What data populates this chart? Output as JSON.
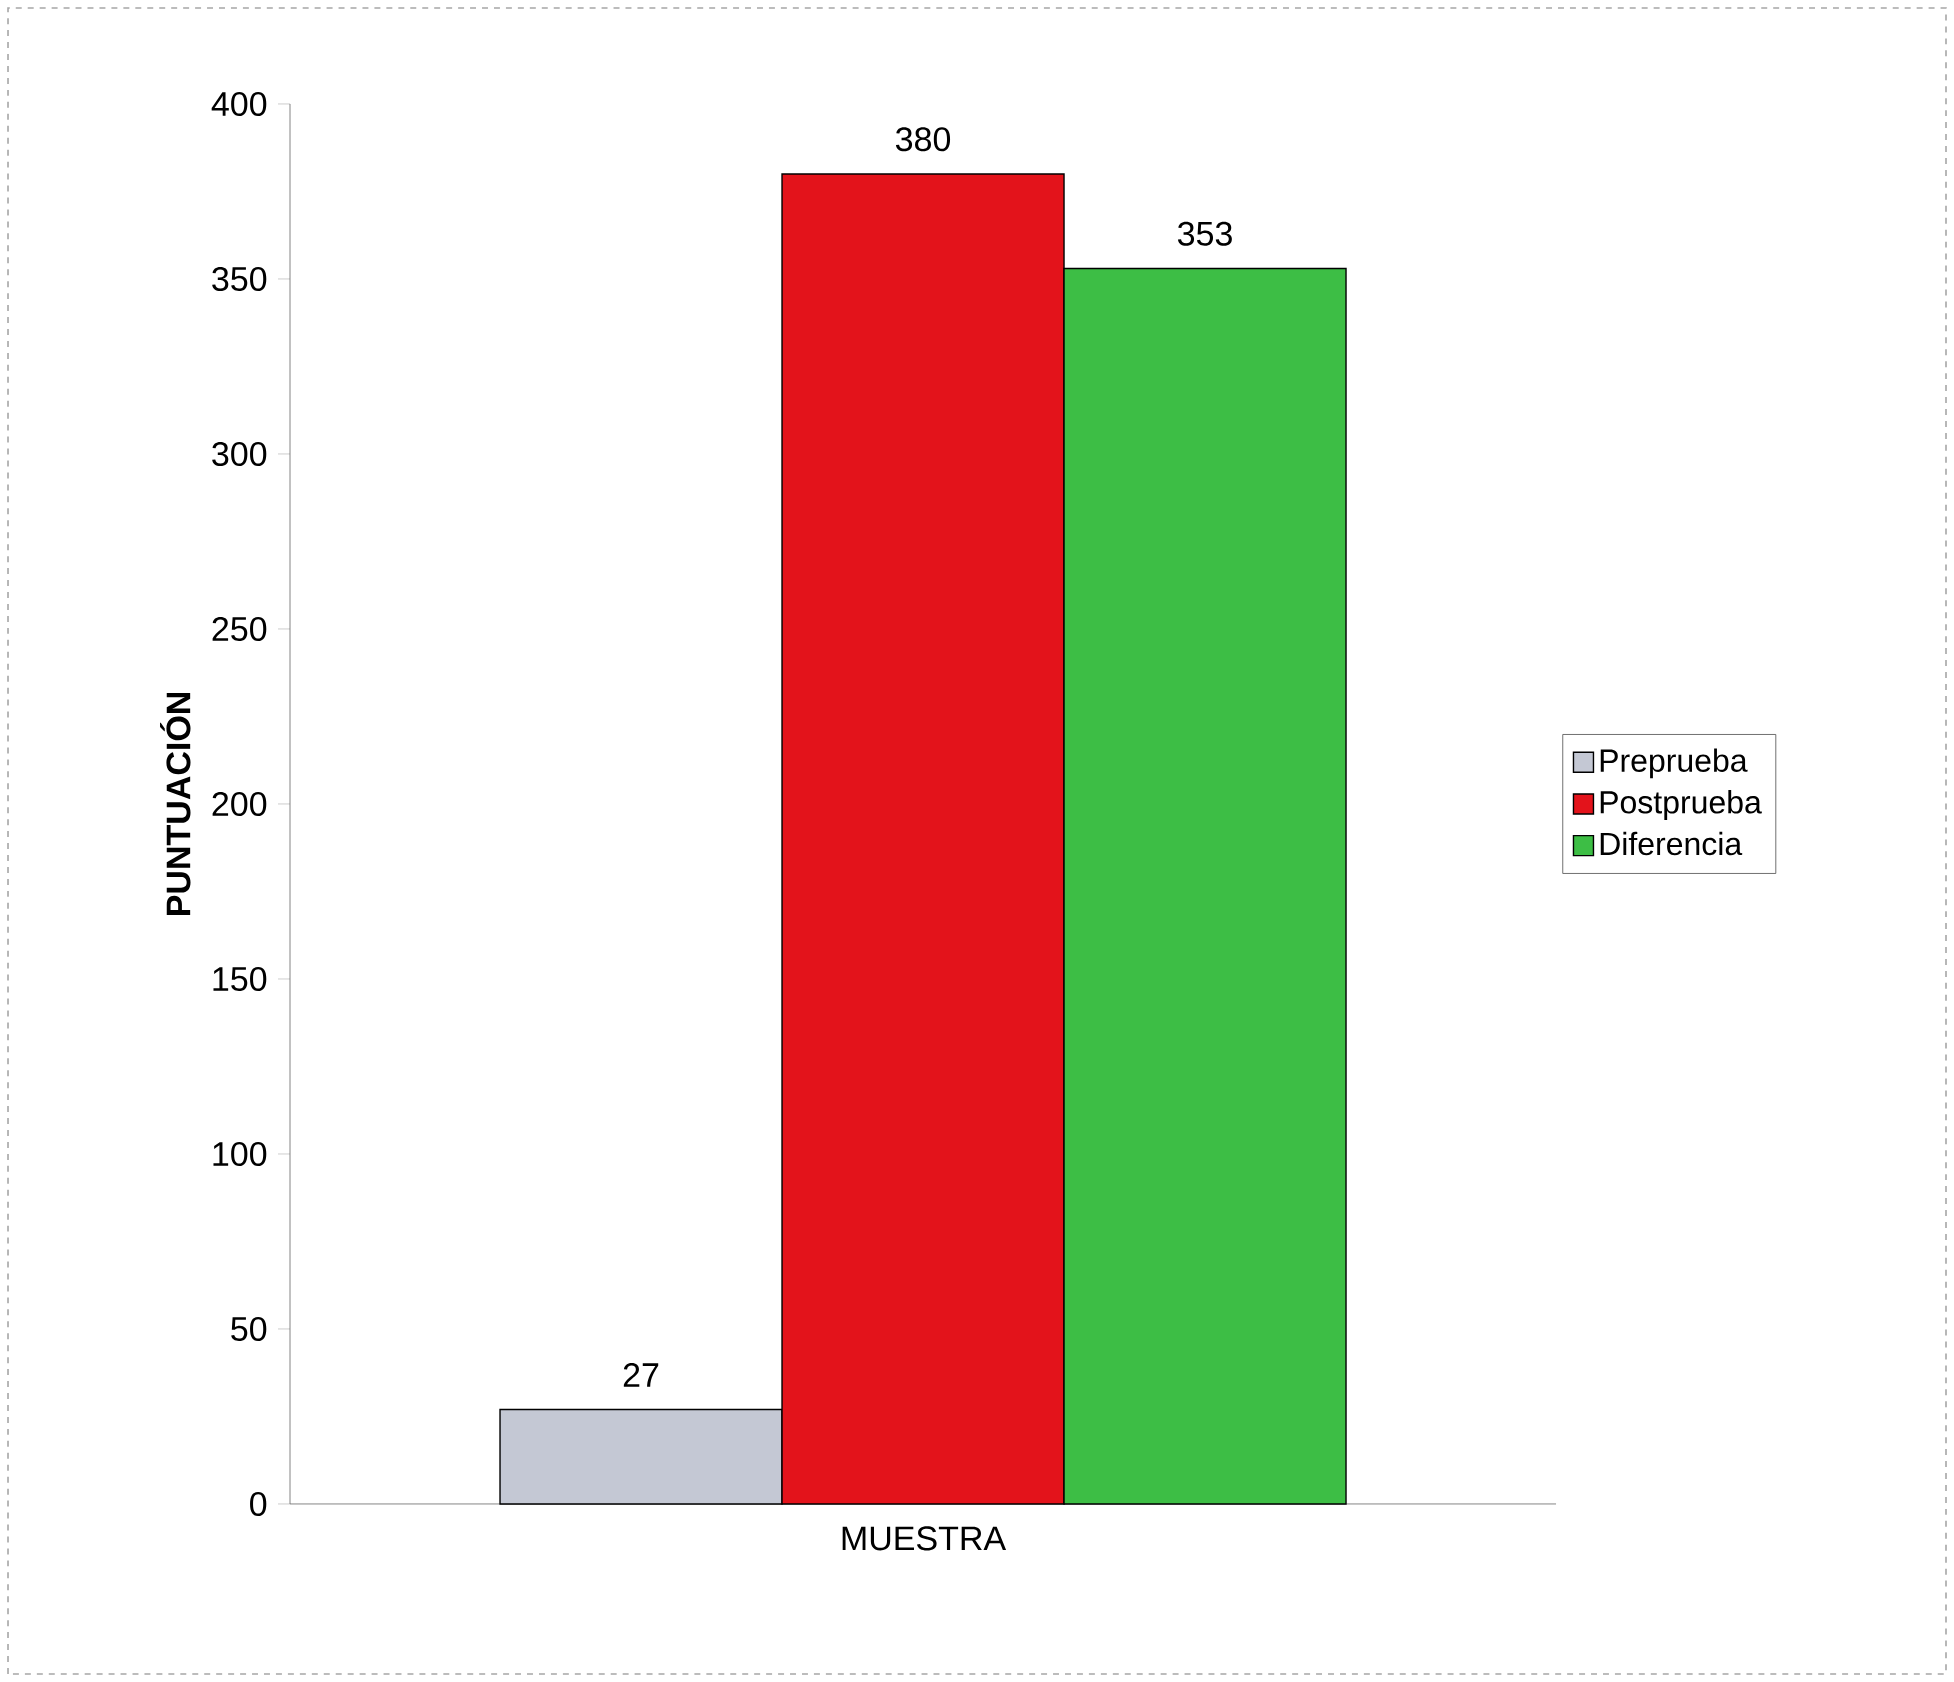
{
  "chart_data": {
    "type": "bar",
    "ylabel": "PUNTUACIÓN",
    "categories": [
      "MUESTRA"
    ],
    "series": [
      {
        "name": "Preprueba",
        "color": "#c4c8d4",
        "values": [
          27
        ]
      },
      {
        "name": "Postprueba",
        "color": "#e3131b",
        "values": [
          380
        ]
      },
      {
        "name": "Diferencia",
        "color": "#3dbe45",
        "values": [
          353
        ]
      }
    ],
    "ylim": [
      0,
      400
    ],
    "yticks": [
      0,
      50,
      100,
      150,
      200,
      250,
      300,
      350,
      400
    ],
    "data_labels": true,
    "legend": "right",
    "grid": false
  }
}
